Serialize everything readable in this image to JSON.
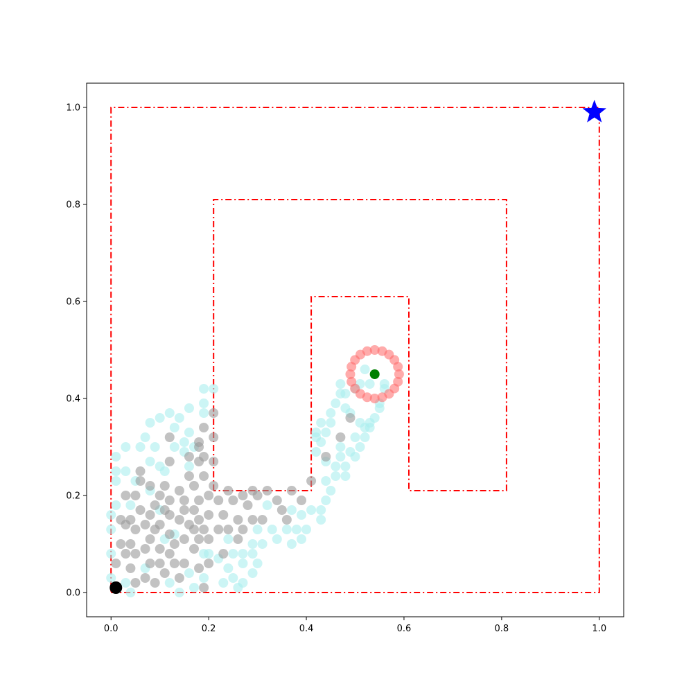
{
  "chart_data": {
    "type": "scatter",
    "title": "",
    "xlabel": "",
    "ylabel": "",
    "xlim": [
      -0.05,
      1.05
    ],
    "ylim": [
      -0.05,
      1.05
    ],
    "grid": false,
    "x_ticks": [
      0.0,
      0.2,
      0.4,
      0.6,
      0.8,
      1.0
    ],
    "y_ticks": [
      0.0,
      0.2,
      0.4,
      0.6,
      0.8,
      1.0
    ],
    "x_tick_labels": [
      "0.0",
      "0.2",
      "0.4",
      "0.6",
      "0.8",
      "1.0"
    ],
    "y_tick_labels": [
      "0.0",
      "0.2",
      "0.4",
      "0.6",
      "0.8",
      "1.0"
    ],
    "colors": {
      "boundary": "#ff0000",
      "explored": "#aaeeee",
      "visited": "#999999",
      "ring": "#ff6666",
      "center": "#008000",
      "start": "#000000",
      "goal": "#0000ff"
    },
    "boundaries": [
      {
        "style": "dash-dot",
        "points": [
          [
            0.0,
            0.0
          ],
          [
            1.0,
            0.0
          ],
          [
            1.0,
            1.0
          ],
          [
            0.0,
            1.0
          ],
          [
            0.0,
            0.0
          ]
        ]
      },
      {
        "style": "dash-dot",
        "points": [
          [
            0.21,
            0.21
          ],
          [
            0.21,
            0.81
          ],
          [
            0.81,
            0.81
          ],
          [
            0.81,
            0.21
          ],
          [
            0.61,
            0.21
          ],
          [
            0.61,
            0.61
          ],
          [
            0.41,
            0.61
          ],
          [
            0.41,
            0.21
          ],
          [
            0.21,
            0.21
          ]
        ]
      }
    ],
    "start": {
      "x": 0.01,
      "y": 0.01,
      "marker": "circle"
    },
    "goal": {
      "x": 0.99,
      "y": 0.99,
      "marker": "star"
    },
    "current": {
      "x": 0.54,
      "y": 0.45,
      "marker": "circle"
    },
    "ring": {
      "center": [
        0.54,
        0.45
      ],
      "radius": 0.05,
      "count": 20
    },
    "explored_points": [
      [
        0.0,
        0.03
      ],
      [
        0.0,
        0.08
      ],
      [
        0.0,
        0.13
      ],
      [
        0.0,
        0.16
      ],
      [
        0.01,
        0.18
      ],
      [
        0.01,
        0.23
      ],
      [
        0.01,
        0.25
      ],
      [
        0.01,
        0.28
      ],
      [
        0.03,
        0.02
      ],
      [
        0.04,
        0.0
      ],
      [
        0.03,
        0.25
      ],
      [
        0.03,
        0.3
      ],
      [
        0.04,
        0.18
      ],
      [
        0.05,
        0.23
      ],
      [
        0.06,
        0.3
      ],
      [
        0.07,
        0.05
      ],
      [
        0.07,
        0.32
      ],
      [
        0.08,
        0.21
      ],
      [
        0.08,
        0.27
      ],
      [
        0.08,
        0.35
      ],
      [
        0.09,
        0.3
      ],
      [
        0.1,
        0.17
      ],
      [
        0.1,
        0.26
      ],
      [
        0.1,
        0.36
      ],
      [
        0.11,
        0.11
      ],
      [
        0.11,
        0.25
      ],
      [
        0.12,
        0.02
      ],
      [
        0.12,
        0.37
      ],
      [
        0.13,
        0.12
      ],
      [
        0.13,
        0.3
      ],
      [
        0.13,
        0.34
      ],
      [
        0.14,
        0.0
      ],
      [
        0.14,
        0.36
      ],
      [
        0.15,
        0.29
      ],
      [
        0.15,
        0.31
      ],
      [
        0.16,
        0.04
      ],
      [
        0.16,
        0.26
      ],
      [
        0.16,
        0.33
      ],
      [
        0.16,
        0.38
      ],
      [
        0.17,
        0.01
      ],
      [
        0.17,
        0.3
      ],
      [
        0.19,
        0.03
      ],
      [
        0.19,
        0.08
      ],
      [
        0.19,
        0.37
      ],
      [
        0.19,
        0.39
      ],
      [
        0.19,
        0.42
      ],
      [
        0.21,
        0.42
      ],
      [
        0.2,
        0.08
      ],
      [
        0.22,
        0.07
      ],
      [
        0.23,
        0.02
      ],
      [
        0.24,
        0.11
      ],
      [
        0.24,
        0.05
      ],
      [
        0.25,
        0.08
      ],
      [
        0.25,
        0.03
      ],
      [
        0.26,
        0.01
      ],
      [
        0.27,
        0.06
      ],
      [
        0.27,
        0.08
      ],
      [
        0.27,
        0.02
      ],
      [
        0.29,
        0.1
      ],
      [
        0.29,
        0.08
      ],
      [
        0.29,
        0.04
      ],
      [
        0.3,
        0.06
      ],
      [
        0.3,
        0.13
      ],
      [
        0.31,
        0.1
      ],
      [
        0.32,
        0.18
      ],
      [
        0.33,
        0.13
      ],
      [
        0.34,
        0.11
      ],
      [
        0.36,
        0.13
      ],
      [
        0.37,
        0.1
      ],
      [
        0.37,
        0.17
      ],
      [
        0.38,
        0.13
      ],
      [
        0.39,
        0.16
      ],
      [
        0.39,
        0.11
      ],
      [
        0.4,
        0.13
      ],
      [
        0.41,
        0.17
      ],
      [
        0.43,
        0.15
      ],
      [
        0.43,
        0.17
      ],
      [
        0.44,
        0.19
      ],
      [
        0.44,
        0.23
      ],
      [
        0.44,
        0.27
      ],
      [
        0.45,
        0.21
      ],
      [
        0.46,
        0.26
      ],
      [
        0.46,
        0.24
      ],
      [
        0.47,
        0.28
      ],
      [
        0.47,
        0.3
      ],
      [
        0.48,
        0.26
      ],
      [
        0.48,
        0.24
      ],
      [
        0.49,
        0.29
      ],
      [
        0.5,
        0.28
      ],
      [
        0.5,
        0.32
      ],
      [
        0.51,
        0.3
      ],
      [
        0.51,
        0.35
      ],
      [
        0.52,
        0.32
      ],
      [
        0.53,
        0.35
      ],
      [
        0.53,
        0.34
      ],
      [
        0.54,
        0.36
      ],
      [
        0.55,
        0.39
      ],
      [
        0.55,
        0.38
      ],
      [
        0.56,
        0.43
      ],
      [
        0.56,
        0.42
      ],
      [
        0.42,
        0.29
      ],
      [
        0.42,
        0.32
      ],
      [
        0.43,
        0.35
      ],
      [
        0.44,
        0.33
      ],
      [
        0.45,
        0.37
      ],
      [
        0.46,
        0.39
      ],
      [
        0.47,
        0.41
      ],
      [
        0.47,
        0.43
      ],
      [
        0.48,
        0.41
      ],
      [
        0.49,
        0.37
      ],
      [
        0.5,
        0.42
      ],
      [
        0.51,
        0.43
      ],
      [
        0.52,
        0.46
      ],
      [
        0.53,
        0.43
      ],
      [
        0.42,
        0.33
      ],
      [
        0.43,
        0.31
      ],
      [
        0.45,
        0.35
      ],
      [
        0.48,
        0.38
      ],
      [
        0.52,
        0.34
      ]
    ],
    "visited_points": [
      [
        0.01,
        0.06
      ],
      [
        0.02,
        0.1
      ],
      [
        0.02,
        0.15
      ],
      [
        0.03,
        0.08
      ],
      [
        0.03,
        0.14
      ],
      [
        0.03,
        0.2
      ],
      [
        0.04,
        0.05
      ],
      [
        0.04,
        0.1
      ],
      [
        0.04,
        0.15
      ],
      [
        0.05,
        0.02
      ],
      [
        0.05,
        0.08
      ],
      [
        0.05,
        0.13
      ],
      [
        0.05,
        0.2
      ],
      [
        0.06,
        0.17
      ],
      [
        0.06,
        0.23
      ],
      [
        0.06,
        0.25
      ],
      [
        0.07,
        0.03
      ],
      [
        0.07,
        0.09
      ],
      [
        0.07,
        0.14
      ],
      [
        0.08,
        0.06
      ],
      [
        0.08,
        0.11
      ],
      [
        0.08,
        0.16
      ],
      [
        0.08,
        0.22
      ],
      [
        0.09,
        0.02
      ],
      [
        0.09,
        0.13
      ],
      [
        0.09,
        0.18
      ],
      [
        0.1,
        0.06
      ],
      [
        0.1,
        0.09
      ],
      [
        0.1,
        0.14
      ],
      [
        0.1,
        0.2
      ],
      [
        0.11,
        0.04
      ],
      [
        0.11,
        0.17
      ],
      [
        0.11,
        0.22
      ],
      [
        0.12,
        0.08
      ],
      [
        0.12,
        0.12
      ],
      [
        0.12,
        0.16
      ],
      [
        0.12,
        0.19
      ],
      [
        0.12,
        0.27
      ],
      [
        0.12,
        0.32
      ],
      [
        0.13,
        0.06
      ],
      [
        0.13,
        0.1
      ],
      [
        0.14,
        0.03
      ],
      [
        0.14,
        0.15
      ],
      [
        0.14,
        0.21
      ],
      [
        0.15,
        0.06
      ],
      [
        0.15,
        0.11
      ],
      [
        0.15,
        0.17
      ],
      [
        0.15,
        0.19
      ],
      [
        0.16,
        0.14
      ],
      [
        0.16,
        0.24
      ],
      [
        0.16,
        0.28
      ],
      [
        0.17,
        0.09
      ],
      [
        0.17,
        0.13
      ],
      [
        0.17,
        0.17
      ],
      [
        0.17,
        0.22
      ],
      [
        0.18,
        0.05
      ],
      [
        0.18,
        0.11
      ],
      [
        0.18,
        0.15
      ],
      [
        0.18,
        0.19
      ],
      [
        0.18,
        0.27
      ],
      [
        0.18,
        0.3
      ],
      [
        0.18,
        0.31
      ],
      [
        0.19,
        0.01
      ],
      [
        0.19,
        0.13
      ],
      [
        0.19,
        0.24
      ],
      [
        0.19,
        0.28
      ],
      [
        0.19,
        0.34
      ],
      [
        0.2,
        0.06
      ],
      [
        0.2,
        0.11
      ],
      [
        0.2,
        0.16
      ],
      [
        0.2,
        0.2
      ],
      [
        0.21,
        0.27
      ],
      [
        0.21,
        0.32
      ],
      [
        0.21,
        0.37
      ],
      [
        0.21,
        0.22
      ],
      [
        0.22,
        0.13
      ],
      [
        0.22,
        0.19
      ],
      [
        0.23,
        0.08
      ],
      [
        0.23,
        0.16
      ],
      [
        0.24,
        0.21
      ],
      [
        0.24,
        0.13
      ],
      [
        0.25,
        0.19
      ],
      [
        0.26,
        0.15
      ],
      [
        0.26,
        0.11
      ],
      [
        0.27,
        0.2
      ],
      [
        0.27,
        0.13
      ],
      [
        0.28,
        0.18
      ],
      [
        0.29,
        0.15
      ],
      [
        0.29,
        0.21
      ],
      [
        0.3,
        0.2
      ],
      [
        0.31,
        0.15
      ],
      [
        0.32,
        0.21
      ],
      [
        0.34,
        0.19
      ],
      [
        0.35,
        0.17
      ],
      [
        0.36,
        0.15
      ],
      [
        0.37,
        0.21
      ],
      [
        0.39,
        0.19
      ],
      [
        0.41,
        0.23
      ],
      [
        0.44,
        0.28
      ],
      [
        0.47,
        0.32
      ],
      [
        0.49,
        0.36
      ]
    ]
  }
}
